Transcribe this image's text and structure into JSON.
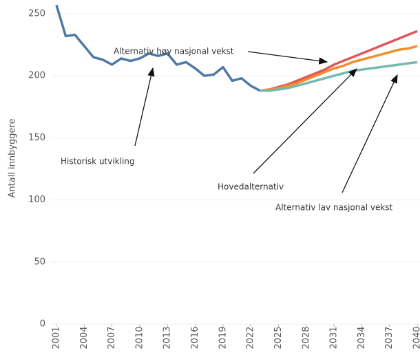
{
  "chart_data": {
    "type": "line",
    "y_label": "Antall innbyggere",
    "x": [
      2001,
      2002,
      2003,
      2004,
      2005,
      2006,
      2007,
      2008,
      2009,
      2010,
      2011,
      2012,
      2013,
      2014,
      2015,
      2016,
      2017,
      2018,
      2019,
      2020,
      2021,
      2022,
      2023,
      2024,
      2025,
      2026,
      2027,
      2028,
      2029,
      2030,
      2031,
      2032,
      2033,
      2034,
      2035,
      2036,
      2037,
      2038,
      2039,
      2040
    ],
    "series": [
      {
        "name": "Historisk utvikling",
        "color": "#4e79a7",
        "values": [
          257,
          232,
          233,
          224,
          215,
          213,
          209,
          214,
          212,
          214,
          218,
          216,
          218,
          209,
          211,
          206,
          200,
          201,
          207,
          196,
          198,
          192,
          188,
          null,
          null,
          null,
          null,
          null,
          null,
          null,
          null,
          null,
          null,
          null,
          null,
          null,
          null,
          null,
          null,
          null
        ]
      },
      {
        "name": "Alternativ høy nasjonal vekst",
        "color": "#e15759",
        "values": [
          null,
          null,
          null,
          null,
          null,
          null,
          null,
          null,
          null,
          null,
          null,
          null,
          null,
          null,
          null,
          null,
          null,
          null,
          null,
          null,
          null,
          null,
          188,
          189,
          191,
          193,
          196,
          199,
          202,
          205,
          209,
          212,
          215,
          218,
          221,
          224,
          227,
          230,
          233,
          236
        ]
      },
      {
        "name": "Hovedalternativ",
        "color": "#f28e2b",
        "values": [
          null,
          null,
          null,
          null,
          null,
          null,
          null,
          null,
          null,
          null,
          null,
          null,
          null,
          null,
          null,
          null,
          null,
          null,
          null,
          null,
          null,
          null,
          188,
          189,
          190,
          192,
          194,
          197,
          200,
          203,
          206,
          208,
          211,
          213,
          215,
          217,
          219,
          221,
          222,
          224
        ]
      },
      {
        "name": "Alternativ lav nasjonal vekst",
        "color": "#76b7b2",
        "values": [
          null,
          null,
          null,
          null,
          null,
          null,
          null,
          null,
          null,
          null,
          null,
          null,
          null,
          null,
          null,
          null,
          null,
          null,
          null,
          null,
          null,
          null,
          188,
          188,
          189,
          190,
          192,
          194,
          196,
          198,
          200,
          202,
          204,
          205,
          206,
          207,
          208,
          209,
          210,
          211
        ]
      }
    ],
    "xlim": [
      2001,
      2040
    ],
    "xticks": [
      2001,
      2004,
      2007,
      2010,
      2013,
      2016,
      2019,
      2022,
      2025,
      2028,
      2031,
      2034,
      2037,
      2040
    ],
    "ylim": [
      0,
      250
    ],
    "yticks": [
      0,
      50,
      100,
      150,
      200,
      250
    ],
    "grid": true
  }
}
